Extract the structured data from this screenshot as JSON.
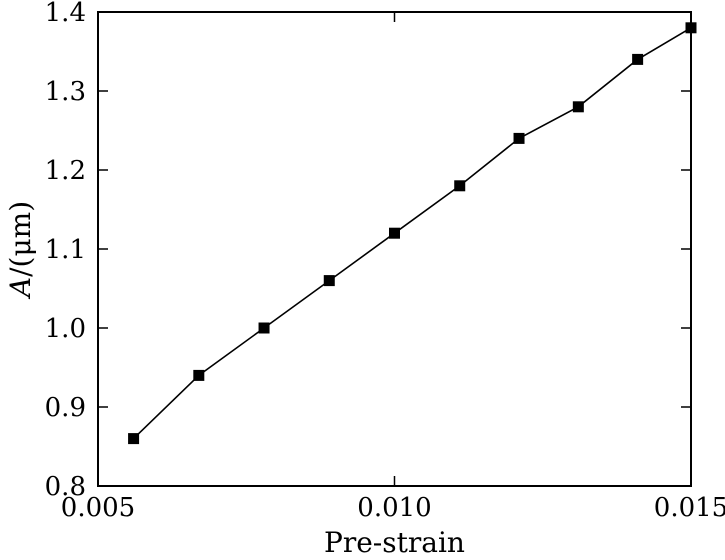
{
  "chart_data": {
    "type": "line",
    "title": "",
    "xlabel": "Pre-strain",
    "ylabel_var": "A",
    "ylabel_unit": "/(μm)",
    "xlim": [
      0.005,
      0.015
    ],
    "ylim": [
      0.8,
      1.4
    ],
    "xticks": [
      "0.005",
      "0.010",
      "0.015"
    ],
    "yticks": [
      "0.8",
      "0.9",
      "1.0",
      "1.1",
      "1.2",
      "1.3",
      "1.4"
    ],
    "grid": false,
    "legend": "none",
    "colors": {
      "series": "#000000",
      "axis": "#000000"
    },
    "series": [
      {
        "x": [
          0.0056,
          0.0067,
          0.0078,
          0.0089,
          0.01,
          0.0111,
          0.0121,
          0.0131,
          0.0141,
          0.015
        ],
        "y": [
          0.86,
          0.94,
          1.0,
          1.06,
          1.12,
          1.18,
          1.24,
          1.28,
          1.34,
          1.38
        ],
        "marker": "square"
      }
    ]
  }
}
